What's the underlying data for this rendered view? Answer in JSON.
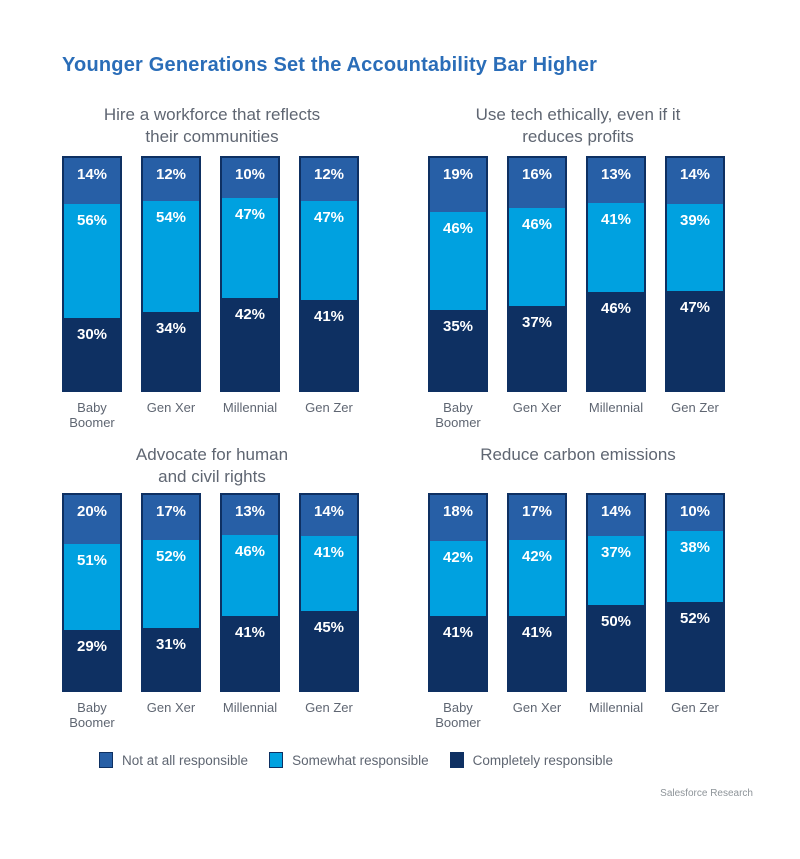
{
  "title": "Younger Generations Set the Accountability Bar Higher",
  "source": "Salesforce Research",
  "colors": {
    "series": [
      "#275FA6",
      "#00A1E0",
      "#0E3062"
    ],
    "bar_border": "#0E3062",
    "title_text": "#2A6DB8",
    "muted_text": "#5F6672",
    "footer_text": "#8E9499",
    "value_text": "#FFFFFF",
    "background": "#FFFFFF"
  },
  "legend": [
    "Not at all responsible",
    "Somewhat responsible",
    "Completely responsible"
  ],
  "chart_data": [
    {
      "type": "bar",
      "stacked": true,
      "title": "Hire a workforce that reflects their communities",
      "title_lines": [
        "Hire a workforce that reflects",
        "their communities"
      ],
      "categories": [
        "Baby Boomer",
        "Gen Xer",
        "Millennial",
        "Gen Zer"
      ],
      "series": [
        {
          "name": "Not at all responsible",
          "values": [
            14,
            12,
            10,
            12
          ]
        },
        {
          "name": "Somewhat responsible",
          "values": [
            56,
            54,
            47,
            47
          ]
        },
        {
          "name": "Completely responsible",
          "values": [
            30,
            34,
            42,
            41
          ]
        }
      ],
      "value_suffix": "%"
    },
    {
      "type": "bar",
      "stacked": true,
      "title": "Use tech ethically, even if it reduces profits",
      "title_lines": [
        "Use tech ethically, even if it",
        "reduces profits"
      ],
      "categories": [
        "Baby Boomer",
        "Gen Xer",
        "Millennial",
        "Gen Zer"
      ],
      "series": [
        {
          "name": "Not at all responsible",
          "values": [
            19,
            16,
            13,
            14
          ]
        },
        {
          "name": "Somewhat responsible",
          "values": [
            46,
            46,
            41,
            39
          ]
        },
        {
          "name": "Completely responsible",
          "values": [
            35,
            37,
            46,
            47
          ]
        }
      ],
      "value_suffix": "%"
    },
    {
      "type": "bar",
      "stacked": true,
      "title": "Advocate for human and civil rights",
      "title_lines": [
        "Advocate for human",
        "and civil rights"
      ],
      "categories": [
        "Baby Boomer",
        "Gen Xer",
        "Millennial",
        "Gen Zer"
      ],
      "series": [
        {
          "name": "Not at all responsible",
          "values": [
            20,
            17,
            13,
            14
          ]
        },
        {
          "name": "Somewhat responsible",
          "values": [
            51,
            52,
            46,
            41
          ]
        },
        {
          "name": "Completely responsible",
          "values": [
            29,
            31,
            41,
            45
          ]
        }
      ],
      "value_suffix": "%"
    },
    {
      "type": "bar",
      "stacked": true,
      "title": "Reduce carbon emissions",
      "title_lines": [
        "Reduce carbon emissions"
      ],
      "categories": [
        "Baby Boomer",
        "Gen Xer",
        "Millennial",
        "Gen Zer"
      ],
      "series": [
        {
          "name": "Not at all responsible",
          "values": [
            18,
            17,
            14,
            10
          ]
        },
        {
          "name": "Somewhat responsible",
          "values": [
            42,
            42,
            37,
            38
          ]
        },
        {
          "name": "Completely responsible",
          "values": [
            41,
            41,
            50,
            52
          ]
        }
      ],
      "value_suffix": "%"
    }
  ]
}
